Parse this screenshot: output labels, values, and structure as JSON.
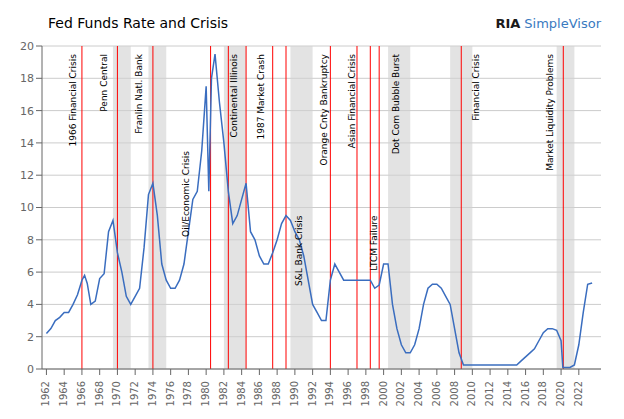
{
  "chart_data": {
    "type": "line",
    "title": "Fed Funds Rate and Crisis",
    "color": "#3a6dbf",
    "grid": "y",
    "xlim": [
      1961.5,
      2024.5
    ],
    "xticks": [
      1962,
      1964,
      1966,
      1968,
      1970,
      1972,
      1974,
      1976,
      1978,
      1980,
      1982,
      1984,
      1986,
      1988,
      1990,
      1992,
      1994,
      1996,
      1998,
      2000,
      2002,
      2004,
      2006,
      2008,
      2010,
      2012,
      2014,
      2016,
      2018,
      2020,
      2022
    ],
    "ylim": [
      0,
      20
    ],
    "yticks": [
      0,
      2,
      4,
      6,
      8,
      10,
      12,
      14,
      16,
      18,
      20
    ],
    "x": [
      1962.0,
      1962.5,
      1963.0,
      1963.5,
      1964.0,
      1964.5,
      1965.0,
      1965.5,
      1966.0,
      1966.3,
      1966.6,
      1967.0,
      1967.5,
      1968.0,
      1968.5,
      1969.0,
      1969.5,
      1970.0,
      1970.5,
      1971.0,
      1971.5,
      1972.0,
      1972.5,
      1973.0,
      1973.5,
      1974.0,
      1974.5,
      1975.0,
      1975.5,
      1976.0,
      1976.5,
      1977.0,
      1977.5,
      1978.0,
      1978.5,
      1979.0,
      1979.5,
      1980.0,
      1980.3,
      1980.6,
      1981.0,
      1981.5,
      1982.0,
      1982.5,
      1983.0,
      1983.5,
      1984.0,
      1984.5,
      1985.0,
      1985.5,
      1986.0,
      1986.5,
      1987.0,
      1987.5,
      1988.0,
      1988.5,
      1989.0,
      1989.5,
      1990.0,
      1990.5,
      1991.0,
      1991.5,
      1992.0,
      1992.5,
      1993.0,
      1993.5,
      1994.0,
      1994.5,
      1995.0,
      1995.5,
      1996.0,
      1996.5,
      1997.0,
      1997.5,
      1998.0,
      1998.5,
      1999.0,
      1999.5,
      2000.0,
      2000.5,
      2001.0,
      2001.5,
      2002.0,
      2002.5,
      2003.0,
      2003.5,
      2004.0,
      2004.5,
      2005.0,
      2005.5,
      2006.0,
      2006.5,
      2007.0,
      2007.5,
      2008.0,
      2008.5,
      2009.0,
      2009.5,
      2010.0,
      2010.5,
      2011.0,
      2011.5,
      2012.0,
      2012.5,
      2013.0,
      2013.5,
      2014.0,
      2014.5,
      2015.0,
      2015.5,
      2016.0,
      2016.5,
      2017.0,
      2017.5,
      2018.0,
      2018.5,
      2019.0,
      2019.5,
      2020.0,
      2020.2,
      2020.5,
      2021.0,
      2021.5,
      2022.0,
      2022.5,
      2023.0,
      2023.5
    ],
    "values": [
      2.2,
      2.5,
      3.0,
      3.2,
      3.5,
      3.5,
      4.0,
      4.6,
      5.5,
      5.8,
      5.3,
      4.0,
      4.2,
      5.6,
      5.9,
      8.5,
      9.2,
      7.2,
      6.0,
      4.5,
      4.0,
      4.5,
      5.0,
      7.5,
      10.8,
      11.5,
      9.5,
      6.5,
      5.5,
      5.0,
      5.0,
      5.5,
      6.5,
      8.5,
      10.5,
      11.0,
      13.5,
      17.5,
      11.0,
      18.0,
      19.5,
      16.5,
      14.0,
      11.0,
      9.0,
      9.5,
      10.5,
      11.5,
      8.5,
      8.0,
      7.0,
      6.5,
      6.5,
      7.2,
      8.0,
      9.0,
      9.5,
      9.2,
      8.5,
      8.0,
      7.0,
      5.5,
      4.0,
      3.5,
      3.0,
      3.0,
      5.5,
      6.5,
      6.0,
      5.5,
      5.5,
      5.5,
      5.5,
      5.5,
      5.5,
      5.5,
      5.0,
      5.2,
      6.5,
      6.5,
      4.0,
      2.5,
      1.5,
      1.0,
      1.0,
      1.5,
      2.5,
      4.0,
      5.0,
      5.25,
      5.25,
      5.0,
      4.5,
      4.0,
      2.5,
      1.0,
      0.25,
      0.25,
      0.25,
      0.25,
      0.25,
      0.25,
      0.25,
      0.25,
      0.25,
      0.25,
      0.25,
      0.25,
      0.25,
      0.5,
      0.75,
      1.0,
      1.25,
      1.75,
      2.25,
      2.5,
      2.5,
      2.4,
      1.75,
      0.1,
      0.1,
      0.1,
      0.25,
      1.5,
      3.5,
      5.25,
      5.33
    ],
    "bands": [
      [
        1969.5,
        1971.5
      ],
      [
        1973.5,
        1975.5
      ],
      [
        1982.0,
        1984.5
      ],
      [
        1989.5,
        1992.0
      ],
      [
        2000.5,
        2003.0
      ],
      [
        2007.5,
        2010.0
      ],
      [
        2019.5,
        2021.5
      ]
    ],
    "band_color": "#d0d0d0",
    "vlines": [
      1966.0,
      1970.0,
      1974.0,
      1980.5,
      1982.5,
      1984.5,
      1987.5,
      1989.0,
      1994.0,
      1997.0,
      1998.5,
      1999.5,
      2008.75,
      2020.25
    ],
    "vline_color": "red",
    "annotations": [
      {
        "text": "1966 Financial Crisis",
        "x": 1965.0,
        "y": 19.5
      },
      {
        "text": "Penn Central",
        "x": 1968.5,
        "y": 19.5
      },
      {
        "text": "Franlin Natl. Bank",
        "x": 1972.5,
        "y": 19.5
      },
      {
        "text": "Oil/Economic Crisis",
        "x": 1977.8,
        "y": 13.5
      },
      {
        "text": "Continental Illinois",
        "x": 1983.2,
        "y": 19.5
      },
      {
        "text": "1987 Market Crash",
        "x": 1986.2,
        "y": 19.5
      },
      {
        "text": "S&L Bank Crisis",
        "x": 1990.5,
        "y": 9.5
      },
      {
        "text": "Orange Cnty Bankruptcy",
        "x": 1993.3,
        "y": 19.5
      },
      {
        "text": "Asian Financial Crisis",
        "x": 1996.5,
        "y": 19.5
      },
      {
        "text": "LTCM Failure",
        "x": 1999.0,
        "y": 9.5
      },
      {
        "text": "Dot Com Bubble Burst",
        "x": 2001.5,
        "y": 19.5
      },
      {
        "text": "Financial Crisis",
        "x": 2010.5,
        "y": 19.5
      },
      {
        "text": "Market Liquidity Problems",
        "x": 2018.8,
        "y": 19.5
      }
    ],
    "watermark": [
      {
        "text": "RIA",
        "color": "#1a1a1a"
      },
      {
        "text": "SimpleVisor",
        "color": "#3a7abf"
      }
    ]
  }
}
